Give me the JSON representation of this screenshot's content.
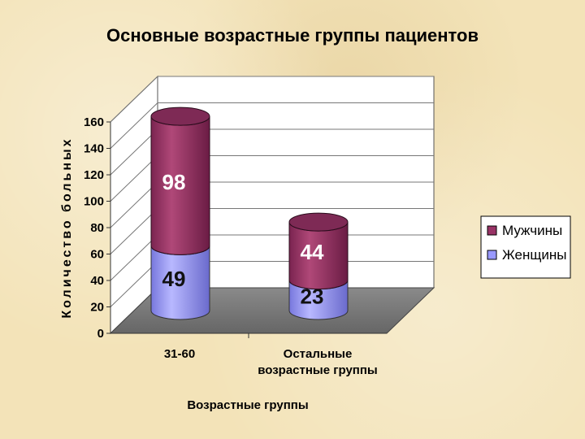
{
  "chart_data": {
    "type": "bar",
    "stacked": true,
    "style": "3d-cylinder",
    "title": "Основные возрастные группы пациентов",
    "xlabel": "Возрастные группы",
    "ylabel": "Количество больных",
    "categories": [
      [
        "31-60"
      ],
      [
        "Остальные",
        "возрастные группы"
      ]
    ],
    "series": [
      {
        "name": "Женщины",
        "values": [
          49,
          23
        ],
        "color": "#9999ff"
      },
      {
        "name": "Мужчины",
        "values": [
          98,
          44
        ],
        "color": "#993366"
      }
    ],
    "ylim": [
      0,
      160
    ],
    "yticks": [
      0,
      20,
      40,
      60,
      80,
      100,
      120,
      140,
      160
    ],
    "grid": true,
    "legend_position": "right"
  }
}
